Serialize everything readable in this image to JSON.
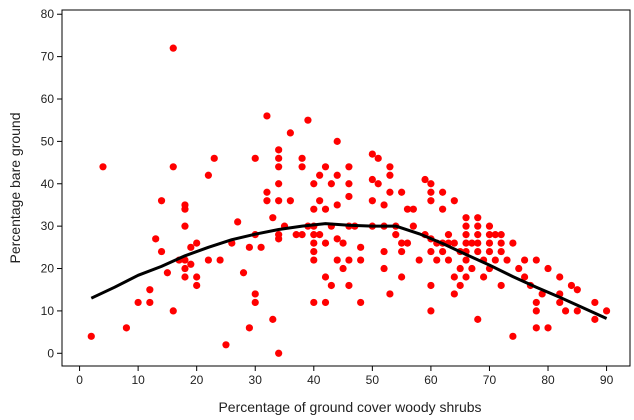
{
  "chart_data": {
    "type": "scatter",
    "xlabel": "Percentage of ground cover woody shrubs",
    "ylabel": "Percentage bare ground",
    "xlim": [
      -3,
      94
    ],
    "ylim": [
      -3,
      81
    ],
    "xticks": [
      0,
      10,
      20,
      30,
      40,
      50,
      60,
      70,
      80,
      90
    ],
    "yticks": [
      0,
      10,
      20,
      30,
      40,
      50,
      60,
      70,
      80
    ],
    "grid": false,
    "point_color": "#ff0000",
    "curve_color": "#000000",
    "series": [
      {
        "kind": "points",
        "points": [
          [
            2,
            4
          ],
          [
            4,
            44
          ],
          [
            8,
            6
          ],
          [
            10,
            12
          ],
          [
            12,
            12
          ],
          [
            12,
            15
          ],
          [
            13,
            27
          ],
          [
            14,
            36
          ],
          [
            14,
            24
          ],
          [
            15,
            19
          ],
          [
            16,
            72
          ],
          [
            16,
            44
          ],
          [
            16,
            10
          ],
          [
            17,
            22
          ],
          [
            18,
            22
          ],
          [
            18,
            35
          ],
          [
            18,
            34
          ],
          [
            18,
            30
          ],
          [
            18,
            20
          ],
          [
            18,
            18
          ],
          [
            19,
            25
          ],
          [
            19,
            21
          ],
          [
            20,
            26
          ],
          [
            20,
            18
          ],
          [
            20,
            16
          ],
          [
            22,
            42
          ],
          [
            22,
            22
          ],
          [
            23,
            46
          ],
          [
            24,
            22
          ],
          [
            25,
            2
          ],
          [
            26,
            26
          ],
          [
            27,
            31
          ],
          [
            28,
            19
          ],
          [
            29,
            25
          ],
          [
            29,
            6
          ],
          [
            30,
            46
          ],
          [
            30,
            28
          ],
          [
            30,
            14
          ],
          [
            30,
            12
          ],
          [
            31,
            25
          ],
          [
            32,
            56
          ],
          [
            32,
            38
          ],
          [
            32,
            36
          ],
          [
            33,
            32
          ],
          [
            33,
            8
          ],
          [
            34,
            0
          ],
          [
            34,
            48
          ],
          [
            34,
            46
          ],
          [
            34,
            44
          ],
          [
            34,
            40
          ],
          [
            34,
            36
          ],
          [
            34,
            28
          ],
          [
            34,
            27
          ],
          [
            35,
            30
          ],
          [
            36,
            52
          ],
          [
            36,
            36
          ],
          [
            37,
            28
          ],
          [
            38,
            46
          ],
          [
            38,
            44
          ],
          [
            38,
            28
          ],
          [
            39,
            55
          ],
          [
            39,
            30
          ],
          [
            40,
            40
          ],
          [
            40,
            34
          ],
          [
            40,
            30
          ],
          [
            40,
            28
          ],
          [
            40,
            26
          ],
          [
            40,
            24
          ],
          [
            40,
            22
          ],
          [
            40,
            12
          ],
          [
            41,
            42
          ],
          [
            41,
            36
          ],
          [
            41,
            28
          ],
          [
            42,
            44
          ],
          [
            42,
            34
          ],
          [
            42,
            26
          ],
          [
            42,
            18
          ],
          [
            42,
            12
          ],
          [
            43,
            40
          ],
          [
            43,
            30
          ],
          [
            43,
            16
          ],
          [
            44,
            50
          ],
          [
            44,
            42
          ],
          [
            44,
            35
          ],
          [
            44,
            27
          ],
          [
            44,
            22
          ],
          [
            45,
            26
          ],
          [
            45,
            20
          ],
          [
            46,
            44
          ],
          [
            46,
            40
          ],
          [
            46,
            37
          ],
          [
            46,
            30
          ],
          [
            46,
            22
          ],
          [
            46,
            16
          ],
          [
            47,
            30
          ],
          [
            48,
            25
          ],
          [
            48,
            22
          ],
          [
            48,
            12
          ],
          [
            50,
            47
          ],
          [
            50,
            41
          ],
          [
            50,
            36
          ],
          [
            50,
            30
          ],
          [
            51,
            46
          ],
          [
            51,
            40
          ],
          [
            52,
            35
          ],
          [
            52,
            30
          ],
          [
            52,
            24
          ],
          [
            52,
            20
          ],
          [
            53,
            44
          ],
          [
            53,
            42
          ],
          [
            53,
            38
          ],
          [
            53,
            14
          ],
          [
            54,
            30
          ],
          [
            54,
            28
          ],
          [
            55,
            38
          ],
          [
            55,
            26
          ],
          [
            55,
            24
          ],
          [
            55,
            18
          ],
          [
            56,
            34
          ],
          [
            56,
            26
          ],
          [
            57,
            34
          ],
          [
            57,
            30
          ],
          [
            58,
            22
          ],
          [
            59,
            41
          ],
          [
            59,
            28
          ],
          [
            60,
            40
          ],
          [
            60,
            38
          ],
          [
            60,
            36
          ],
          [
            60,
            27
          ],
          [
            60,
            24
          ],
          [
            60,
            16
          ],
          [
            60,
            10
          ],
          [
            61,
            26
          ],
          [
            61,
            22
          ],
          [
            62,
            38
          ],
          [
            62,
            34
          ],
          [
            62,
            26
          ],
          [
            62,
            24
          ],
          [
            63,
            28
          ],
          [
            63,
            26
          ],
          [
            63,
            22
          ],
          [
            64,
            36
          ],
          [
            64,
            26
          ],
          [
            64,
            18
          ],
          [
            64,
            14
          ],
          [
            65,
            24
          ],
          [
            65,
            20
          ],
          [
            65,
            16
          ],
          [
            66,
            32
          ],
          [
            66,
            30
          ],
          [
            66,
            28
          ],
          [
            66,
            26
          ],
          [
            66,
            24
          ],
          [
            66,
            22
          ],
          [
            66,
            18
          ],
          [
            67,
            26
          ],
          [
            67,
            20
          ],
          [
            68,
            32
          ],
          [
            68,
            30
          ],
          [
            68,
            28
          ],
          [
            68,
            26
          ],
          [
            68,
            24
          ],
          [
            68,
            8
          ],
          [
            69,
            22
          ],
          [
            69,
            18
          ],
          [
            70,
            30
          ],
          [
            70,
            28
          ],
          [
            70,
            26
          ],
          [
            70,
            24
          ],
          [
            70,
            20
          ],
          [
            71,
            28
          ],
          [
            71,
            22
          ],
          [
            72,
            28
          ],
          [
            72,
            26
          ],
          [
            72,
            24
          ],
          [
            72,
            16
          ],
          [
            73,
            22
          ],
          [
            74,
            26
          ],
          [
            74,
            4
          ],
          [
            75,
            20
          ],
          [
            76,
            22
          ],
          [
            76,
            18
          ],
          [
            77,
            16
          ],
          [
            78,
            22
          ],
          [
            78,
            12
          ],
          [
            78,
            10
          ],
          [
            78,
            6
          ],
          [
            79,
            14
          ],
          [
            80,
            20
          ],
          [
            80,
            6
          ],
          [
            82,
            18
          ],
          [
            82,
            14
          ],
          [
            82,
            12
          ],
          [
            83,
            10
          ],
          [
            84,
            16
          ],
          [
            85,
            15
          ],
          [
            85,
            10
          ],
          [
            88,
            12
          ],
          [
            88,
            8
          ],
          [
            90,
            10
          ]
        ]
      },
      {
        "kind": "curve",
        "points": [
          [
            2,
            13
          ],
          [
            6,
            15.6
          ],
          [
            10,
            18.4
          ],
          [
            14,
            20.5
          ],
          [
            18,
            23
          ],
          [
            22,
            25
          ],
          [
            26,
            26.8
          ],
          [
            30,
            28.1
          ],
          [
            34,
            29.2
          ],
          [
            38,
            30
          ],
          [
            42,
            30.6
          ],
          [
            46,
            30.2
          ],
          [
            50,
            30
          ],
          [
            54,
            30
          ],
          [
            58,
            28.2
          ],
          [
            62,
            25.9
          ],
          [
            66,
            23.3
          ],
          [
            70,
            20.8
          ],
          [
            74,
            18.1
          ],
          [
            78,
            15.6
          ],
          [
            82,
            13.2
          ],
          [
            86,
            10.7
          ],
          [
            90,
            8.2
          ]
        ]
      }
    ]
  }
}
